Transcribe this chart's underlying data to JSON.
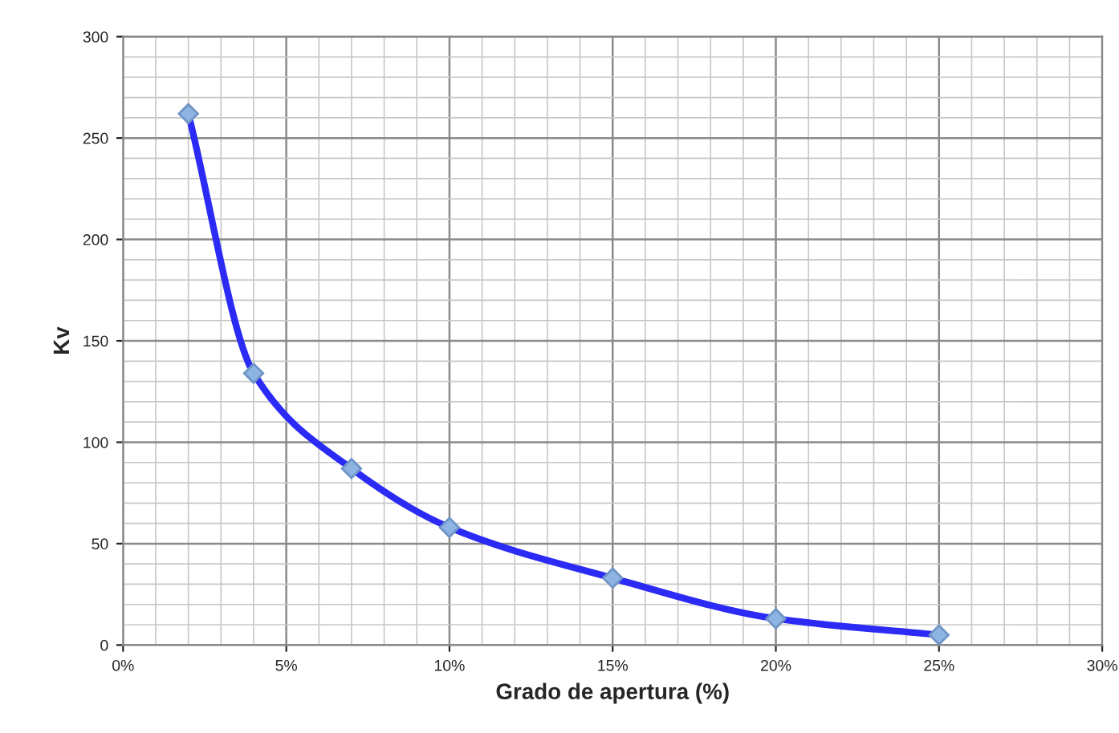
{
  "chart_data": {
    "type": "line",
    "xlabel": "Grado de apertura (%)",
    "ylabel": "Kv",
    "x": [
      2,
      4,
      7,
      10,
      15,
      20,
      25
    ],
    "series": [
      {
        "color": "#2b2bf5",
        "values": [
          262,
          134,
          87,
          58,
          33,
          13,
          5
        ]
      }
    ],
    "xlim": [
      0,
      30
    ],
    "xticks": [
      {
        "value": 0,
        "label": "0%"
      },
      {
        "value": 5,
        "label": "5%"
      },
      {
        "value": 10,
        "label": "10%"
      },
      {
        "value": 15,
        "label": "15%"
      },
      {
        "value": 20,
        "label": "20%"
      },
      {
        "value": 25,
        "label": "25%"
      },
      {
        "value": 30,
        "label": "30%"
      }
    ],
    "ylim": [
      0,
      300
    ],
    "yticks": [
      0,
      50,
      100,
      150,
      200,
      250,
      300
    ],
    "grid": true,
    "marker": "diamond",
    "line_style": "solid"
  }
}
